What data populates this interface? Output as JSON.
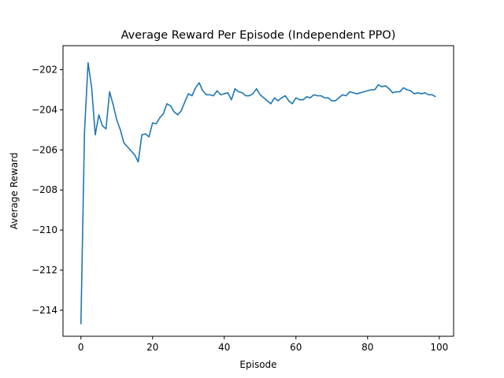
{
  "chart_data": {
    "type": "line",
    "title": "Average Reward Per Episode (Independent PPO)",
    "xlabel": "Episode",
    "ylabel": "Average Reward",
    "xlim": [
      -5,
      104
    ],
    "ylim": [
      -215.3,
      -200.8
    ],
    "xticks": [
      0,
      20,
      40,
      60,
      80,
      100
    ],
    "yticks": [
      -214,
      -212,
      -210,
      -208,
      -206,
      -204,
      -202
    ],
    "grid": false,
    "legend": "none",
    "series": [
      {
        "color": "#1f77b4",
        "x": [
          0,
          1,
          2,
          3,
          4,
          5,
          6,
          7,
          8,
          9,
          10,
          11,
          12,
          13,
          14,
          15,
          16,
          17,
          18,
          19,
          20,
          21,
          22,
          23,
          24,
          25,
          26,
          27,
          28,
          29,
          30,
          31,
          32,
          33,
          34,
          35,
          36,
          37,
          38,
          39,
          40,
          41,
          42,
          43,
          44,
          45,
          46,
          47,
          48,
          49,
          50,
          51,
          52,
          53,
          54,
          55,
          56,
          57,
          58,
          59,
          60,
          61,
          62,
          63,
          64,
          65,
          66,
          67,
          68,
          69,
          70,
          71,
          72,
          73,
          74,
          75,
          76,
          77,
          78,
          79,
          80,
          81,
          82,
          83,
          84,
          85,
          86,
          87,
          88,
          89,
          90,
          91,
          92,
          93,
          94,
          95,
          96,
          97,
          98,
          99
        ],
        "values": [
          -214.7,
          -205.1,
          -201.65,
          -202.9,
          -205.25,
          -204.25,
          -204.8,
          -204.95,
          -203.1,
          -203.75,
          -204.5,
          -205.0,
          -205.65,
          -205.85,
          -206.05,
          -206.25,
          -206.6,
          -205.25,
          -205.2,
          -205.35,
          -204.65,
          -204.7,
          -204.4,
          -204.2,
          -203.7,
          -203.8,
          -204.1,
          -204.25,
          -204.05,
          -203.6,
          -203.2,
          -203.3,
          -202.9,
          -202.65,
          -203.05,
          -203.25,
          -203.25,
          -203.3,
          -203.05,
          -203.25,
          -203.2,
          -203.15,
          -203.5,
          -202.95,
          -203.1,
          -203.15,
          -203.3,
          -203.3,
          -203.2,
          -202.95,
          -203.25,
          -203.4,
          -203.55,
          -203.7,
          -203.4,
          -203.55,
          -203.4,
          -203.3,
          -203.55,
          -203.7,
          -203.4,
          -203.5,
          -203.5,
          -203.35,
          -203.4,
          -203.25,
          -203.3,
          -203.3,
          -203.4,
          -203.4,
          -203.55,
          -203.55,
          -203.4,
          -203.25,
          -203.3,
          -203.1,
          -203.15,
          -203.2,
          -203.15,
          -203.1,
          -203.05,
          -203.0,
          -203.0,
          -202.75,
          -202.85,
          -202.8,
          -202.95,
          -203.15,
          -203.1,
          -203.1,
          -202.9,
          -203.0,
          -203.05,
          -203.2,
          -203.15,
          -203.2,
          -203.15,
          -203.25,
          -203.25,
          -203.35
        ]
      }
    ]
  }
}
